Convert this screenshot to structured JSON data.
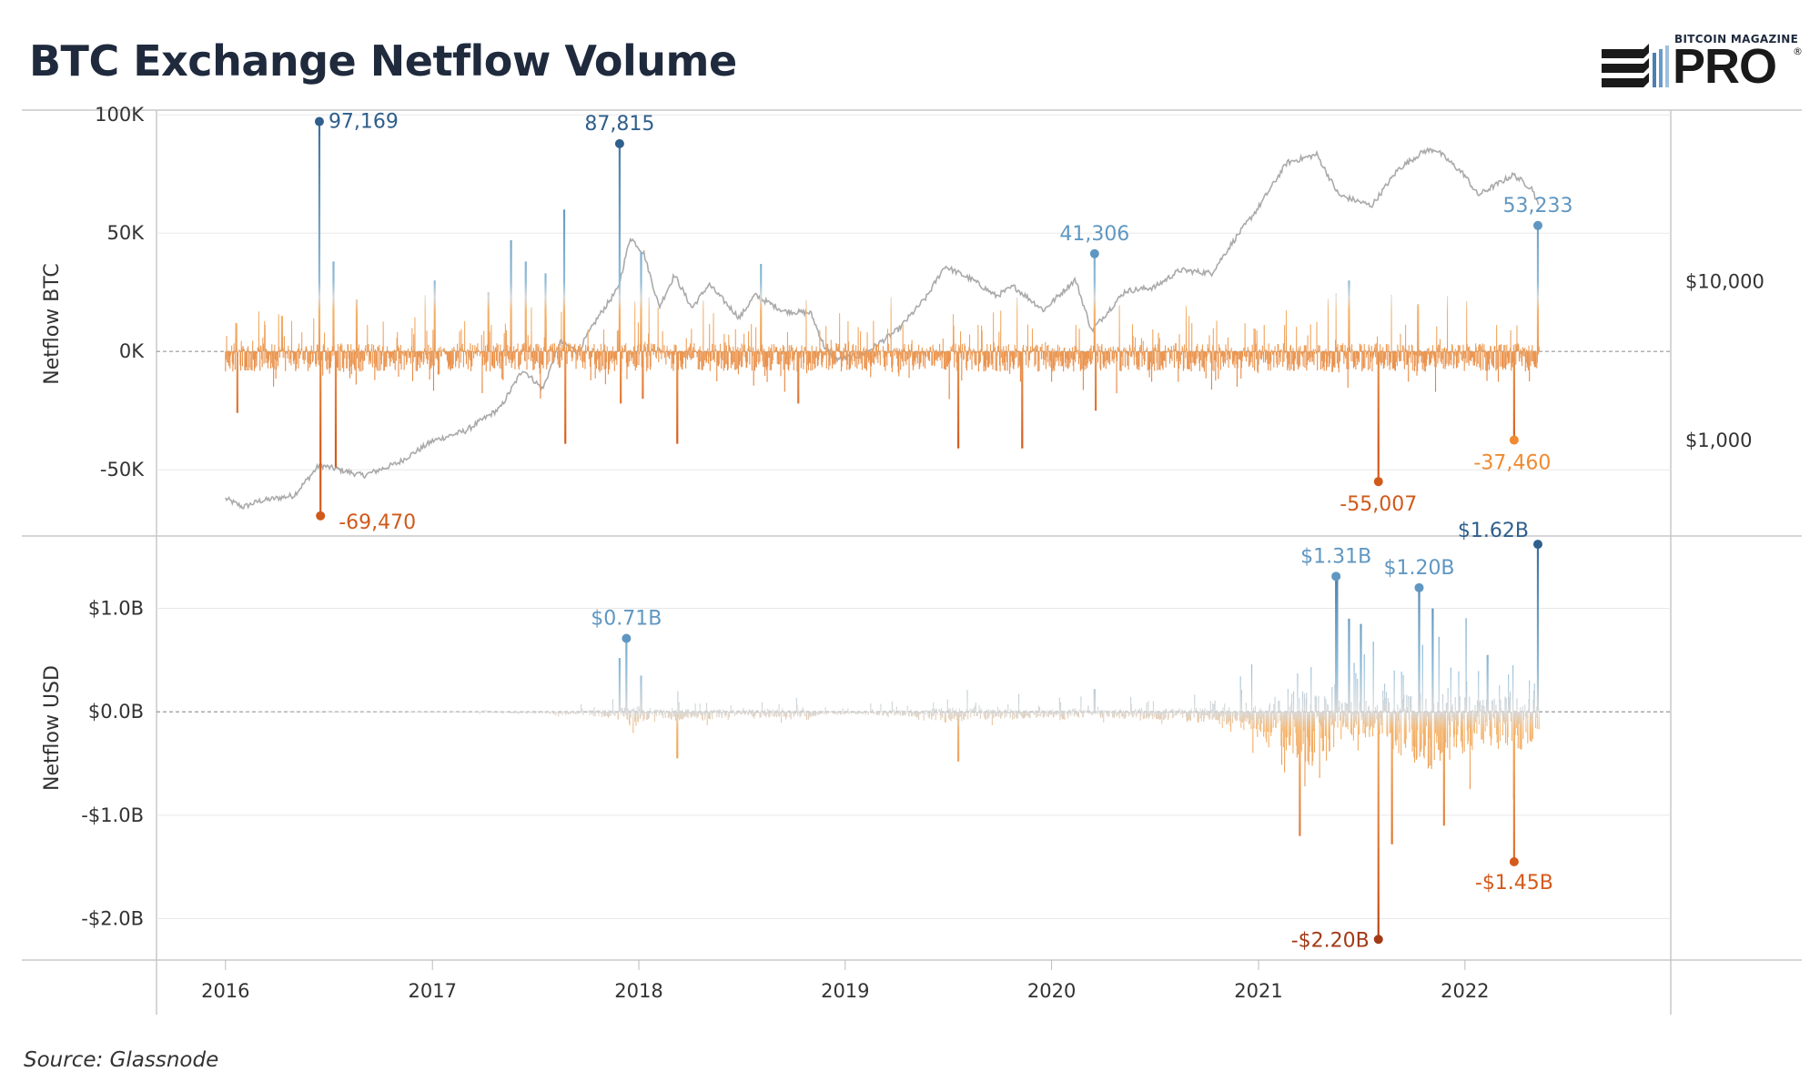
{
  "header": {
    "title": "BTC Exchange Netflow Volume",
    "brand_small": "BITCOIN MAGAZINE",
    "brand_big": "PRO",
    "brand_mark": "®"
  },
  "footer": {
    "source": "Source: Glassnode"
  },
  "colors": {
    "inflow_dark": "#3a6e9e",
    "inflow_light": "#8fbcd8",
    "outflow_light": "#f5b46b",
    "outflow_dark": "#d65a1c",
    "price_line": "#aaaaaa",
    "grid": "#e8e8e8"
  },
  "chart_data": [
    {
      "type": "bar",
      "panel": "top",
      "ylabel": "Netflow BTC",
      "ylim": [
        -78000,
        102000
      ],
      "yticks": [
        {
          "value": 100000,
          "label": "100K"
        },
        {
          "value": 50000,
          "label": "50K"
        },
        {
          "value": 0,
          "label": "0K"
        },
        {
          "value": -50000,
          "label": "-50K"
        }
      ],
      "secondary_axis": {
        "series": "BTC price (log scale)",
        "ticks": [
          {
            "value": 10000,
            "label": "$10,000"
          },
          {
            "value": 1000,
            "label": "$1,000"
          }
        ]
      },
      "price": [
        [
          "2016-01-01",
          430
        ],
        [
          "2016-02-01",
          380
        ],
        [
          "2016-03-01",
          415
        ],
        [
          "2016-05-01",
          450
        ],
        [
          "2016-06-15",
          700
        ],
        [
          "2016-07-15",
          660
        ],
        [
          "2016-09-01",
          600
        ],
        [
          "2016-11-01",
          720
        ],
        [
          "2017-01-01",
          990
        ],
        [
          "2017-03-01",
          1150
        ],
        [
          "2017-05-01",
          1600
        ],
        [
          "2017-06-10",
          2800
        ],
        [
          "2017-07-15",
          2100
        ],
        [
          "2017-08-15",
          4200
        ],
        [
          "2017-09-15",
          3600
        ],
        [
          "2017-10-20",
          5900
        ],
        [
          "2017-11-25",
          9000
        ],
        [
          "2017-12-17",
          19000
        ],
        [
          "2018-01-10",
          15000
        ],
        [
          "2018-02-06",
          6900
        ],
        [
          "2018-03-05",
          11000
        ],
        [
          "2018-04-05",
          6800
        ],
        [
          "2018-05-05",
          9600
        ],
        [
          "2018-06-28",
          5900
        ],
        [
          "2018-07-25",
          8200
        ],
        [
          "2018-09-15",
          6500
        ],
        [
          "2018-11-01",
          6350
        ],
        [
          "2018-11-25",
          3900
        ],
        [
          "2018-12-15",
          3250
        ],
        [
          "2019-02-01",
          3450
        ],
        [
          "2019-04-05",
          5000
        ],
        [
          "2019-05-25",
          8000
        ],
        [
          "2019-06-26",
          12500
        ],
        [
          "2019-08-15",
          10200
        ],
        [
          "2019-09-25",
          8100
        ],
        [
          "2019-10-26",
          9300
        ],
        [
          "2019-12-18",
          6600
        ],
        [
          "2020-02-12",
          10300
        ],
        [
          "2020-03-12",
          4900
        ],
        [
          "2020-05-10",
          8700
        ],
        [
          "2020-07-01",
          9200
        ],
        [
          "2020-08-15",
          11800
        ],
        [
          "2020-10-10",
          11300
        ],
        [
          "2020-11-20",
          18500
        ],
        [
          "2020-12-31",
          29000
        ],
        [
          "2021-02-20",
          56000
        ],
        [
          "2021-04-14",
          63000
        ],
        [
          "2021-05-23",
          35000
        ],
        [
          "2021-07-20",
          30000
        ],
        [
          "2021-09-05",
          51000
        ],
        [
          "2021-10-20",
          66000
        ],
        [
          "2021-11-10",
          68000
        ],
        [
          "2021-12-31",
          47000
        ],
        [
          "2022-01-24",
          35000
        ],
        [
          "2022-03-28",
          47000
        ],
        [
          "2022-05-01",
          38000
        ],
        [
          "2022-05-12",
          29000
        ]
      ],
      "series": [
        {
          "name": "Netflow BTC",
          "spikes": [
            [
              "2016-01-20",
              12000
            ],
            [
              "2016-01-22",
              -26000
            ],
            [
              "2016-04-10",
              15000
            ],
            [
              "2016-06-15",
              97169
            ],
            [
              "2016-06-17",
              -69470
            ],
            [
              "2016-07-10",
              38000
            ],
            [
              "2016-07-14",
              -49000
            ],
            [
              "2016-08-20",
              22000
            ],
            [
              "2017-01-05",
              30000
            ],
            [
              "2017-04-10",
              25000
            ],
            [
              "2017-05-20",
              47000
            ],
            [
              "2017-06-15",
              38000
            ],
            [
              "2017-07-20",
              33000
            ],
            [
              "2017-08-22",
              60000
            ],
            [
              "2017-08-24",
              -39000
            ],
            [
              "2017-11-28",
              87815
            ],
            [
              "2017-11-30",
              -22000
            ],
            [
              "2018-01-05",
              42000
            ],
            [
              "2018-01-08",
              -20000
            ],
            [
              "2018-03-10",
              -39000
            ],
            [
              "2018-08-05",
              37000
            ],
            [
              "2018-10-10",
              -22000
            ],
            [
              "2019-07-20",
              -41000
            ],
            [
              "2019-11-10",
              -41000
            ],
            [
              "2020-03-17",
              41306
            ],
            [
              "2020-03-19",
              -25000
            ],
            [
              "2021-08-01",
              -55007
            ],
            [
              "2021-06-10",
              30000
            ],
            [
              "2021-10-10",
              20000
            ],
            [
              "2022-03-29",
              -37460
            ],
            [
              "2022-05-10",
              53233
            ]
          ]
        }
      ],
      "annotations": [
        {
          "date": "2016-06-15",
          "value": 97169,
          "label": "97,169"
        },
        {
          "date": "2016-06-17",
          "value": -69470,
          "label": "-69,470"
        },
        {
          "date": "2017-11-28",
          "value": 87815,
          "label": "87,815"
        },
        {
          "date": "2020-03-17",
          "value": 41306,
          "label": "41,306"
        },
        {
          "date": "2021-08-01",
          "value": -55007,
          "label": "-55,007"
        },
        {
          "date": "2022-03-29",
          "value": -37460,
          "label": "-37,460"
        },
        {
          "date": "2022-05-10",
          "value": 53233,
          "label": "53,233"
        }
      ]
    },
    {
      "type": "bar",
      "panel": "bottom",
      "ylabel": "Netflow USD",
      "ylim": [
        -2.4,
        1.7
      ],
      "yticks": [
        {
          "value": 1.0,
          "label": "$1.0B"
        },
        {
          "value": 0.0,
          "label": "$0.0B"
        },
        {
          "value": -1.0,
          "label": "-$1.0B"
        },
        {
          "value": -2.0,
          "label": "-$2.0B"
        }
      ],
      "series": [
        {
          "name": "Netflow USD",
          "spikes": [
            [
              "2017-11-28",
              0.52
            ],
            [
              "2017-12-10",
              0.71
            ],
            [
              "2018-01-05",
              0.35
            ],
            [
              "2018-03-10",
              -0.45
            ],
            [
              "2019-07-20",
              -0.48
            ],
            [
              "2020-03-17",
              0.22
            ],
            [
              "2021-03-15",
              -1.2
            ],
            [
              "2021-05-18",
              1.31
            ],
            [
              "2021-05-20",
              1.28
            ],
            [
              "2021-06-10",
              0.9
            ],
            [
              "2021-07-01",
              0.85
            ],
            [
              "2021-08-01",
              -2.2
            ],
            [
              "2021-08-25",
              -1.28
            ],
            [
              "2021-10-12",
              1.2
            ],
            [
              "2021-11-05",
              1.0
            ],
            [
              "2021-11-25",
              -1.1
            ],
            [
              "2022-02-10",
              0.55
            ],
            [
              "2022-03-29",
              -1.45
            ],
            [
              "2022-05-10",
              1.62
            ]
          ]
        }
      ],
      "annotations": [
        {
          "date": "2017-12-10",
          "value": 0.71,
          "label": "$0.71B"
        },
        {
          "date": "2021-05-18",
          "value": 1.31,
          "label": "$1.31B"
        },
        {
          "date": "2021-08-01",
          "value": -2.2,
          "label": "-$2.20B"
        },
        {
          "date": "2021-10-12",
          "value": 1.2,
          "label": "$1.20B"
        },
        {
          "date": "2022-03-29",
          "value": -1.45,
          "label": "-$1.45B"
        },
        {
          "date": "2022-05-10",
          "value": 1.62,
          "label": "$1.62B"
        }
      ]
    }
  ],
  "x_axis": {
    "range": [
      "2015-09-01",
      "2022-12-31"
    ],
    "data_range": [
      "2016-01-01",
      "2022-05-12"
    ],
    "ticks": [
      {
        "date": "2016-01-01",
        "label": "2016"
      },
      {
        "date": "2017-01-01",
        "label": "2017"
      },
      {
        "date": "2018-01-01",
        "label": "2018"
      },
      {
        "date": "2019-01-01",
        "label": "2019"
      },
      {
        "date": "2020-01-01",
        "label": "2020"
      },
      {
        "date": "2021-01-01",
        "label": "2021"
      },
      {
        "date": "2022-01-01",
        "label": "2022"
      }
    ]
  }
}
